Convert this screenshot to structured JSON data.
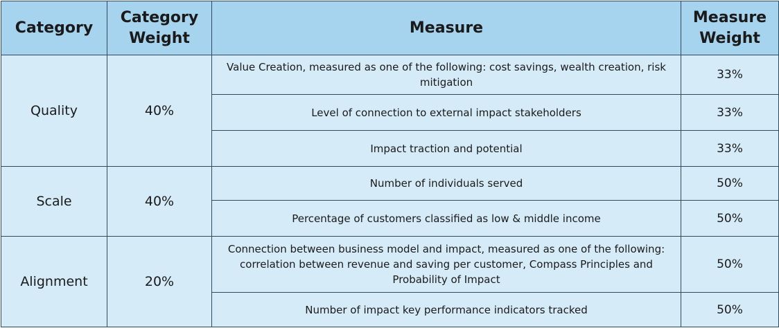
{
  "headers": {
    "category": "Category",
    "category_weight": "Category Weight",
    "measure": "Measure",
    "measure_weight": "Measure Weight"
  },
  "groups": [
    {
      "category": "Quality",
      "weight": "40%",
      "measures": [
        {
          "text": "Value Creation, measured as one of the following: cost savings, wealth creation, risk mitigation",
          "weight": "33%"
        },
        {
          "text": "Level of connection to external impact stakeholders",
          "weight": "33%"
        },
        {
          "text": "Impact traction and potential",
          "weight": "33%"
        }
      ]
    },
    {
      "category": "Scale",
      "weight": "40%",
      "measures": [
        {
          "text": "Number of individuals served",
          "weight": "50%"
        },
        {
          "text": "Percentage of customers classified as low & middle income",
          "weight": "50%"
        }
      ]
    },
    {
      "category": "Alignment",
      "weight": "20%",
      "measures": [
        {
          "text": "Connection between business model and impact, measured as one of the following: correlation between revenue and saving per customer, Compass Principles and Probability of Impact",
          "weight": "50%"
        },
        {
          "text": "Number of impact key performance indicators tracked",
          "weight": "50%"
        }
      ]
    }
  ]
}
